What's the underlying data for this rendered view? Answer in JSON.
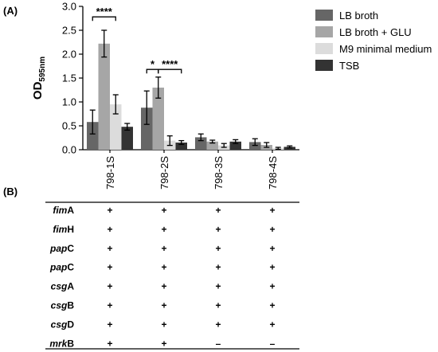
{
  "panels": {
    "a_label": "(A)",
    "b_label": "(B)"
  },
  "chart_data": {
    "type": "bar",
    "ylabel": "OD",
    "ylabel_subscript": "595nm",
    "ylim": [
      0,
      3.0
    ],
    "yticks": [
      "0.0",
      "0.5",
      "1.0",
      "1.5",
      "2.0",
      "2.5",
      "3.0"
    ],
    "categories": [
      "798-1S",
      "798-2S",
      "798-3S",
      "798-4S"
    ],
    "series": [
      {
        "name": "LB broth",
        "color": "#666666",
        "values": [
          0.58,
          0.88,
          0.26,
          0.16
        ],
        "errors": [
          0.25,
          0.35,
          0.07,
          0.07
        ]
      },
      {
        "name": "LB broth + GLU",
        "color": "#a6a6a6",
        "values": [
          2.22,
          1.3,
          0.17,
          0.1
        ],
        "errors": [
          0.28,
          0.22,
          0.03,
          0.05
        ]
      },
      {
        "name": "M9 minimal medium",
        "color": "#dcdcdc",
        "values": [
          0.95,
          0.19,
          0.09,
          0.03
        ],
        "errors": [
          0.2,
          0.1,
          0.04,
          0.02
        ]
      },
      {
        "name": "TSB",
        "color": "#333333",
        "values": [
          0.48,
          0.15,
          0.17,
          0.06
        ],
        "errors": [
          0.07,
          0.04,
          0.04,
          0.02
        ]
      }
    ],
    "significance": [
      {
        "label": "****",
        "category": 0,
        "from_series": 0,
        "to_series": 2,
        "y": 2.78
      },
      {
        "label": "*",
        "category": 1,
        "from_series": 0,
        "to_series": 1,
        "y": 1.68
      },
      {
        "label": "****",
        "category": 1,
        "from_series": 1,
        "to_series": 3,
        "y": 1.68
      }
    ],
    "legend_position": "top-right",
    "grid": false
  },
  "gene_table": {
    "columns": [
      "798-1S",
      "798-2S",
      "798-3S",
      "798-4S"
    ],
    "rows": [
      {
        "prefix": "fim",
        "suffix": "A",
        "values": [
          "+",
          "+",
          "+",
          "+"
        ]
      },
      {
        "prefix": "fim",
        "suffix": "H",
        "values": [
          "+",
          "+",
          "+",
          "+"
        ]
      },
      {
        "prefix": "pap",
        "suffix": "C",
        "values": [
          "+",
          "+",
          "+",
          "+"
        ]
      },
      {
        "prefix": "pap",
        "suffix": "C",
        "values": [
          "+",
          "+",
          "+",
          "+"
        ]
      },
      {
        "prefix": "csg",
        "suffix": "A",
        "values": [
          "+",
          "+",
          "+",
          "+"
        ]
      },
      {
        "prefix": "csg",
        "suffix": "B",
        "values": [
          "+",
          "+",
          "+",
          "+"
        ]
      },
      {
        "prefix": "csg",
        "suffix": "D",
        "values": [
          "+",
          "+",
          "+",
          "+"
        ]
      },
      {
        "prefix": "mrk",
        "suffix": "B",
        "values": [
          "+",
          "+",
          "–",
          "–"
        ]
      }
    ]
  }
}
